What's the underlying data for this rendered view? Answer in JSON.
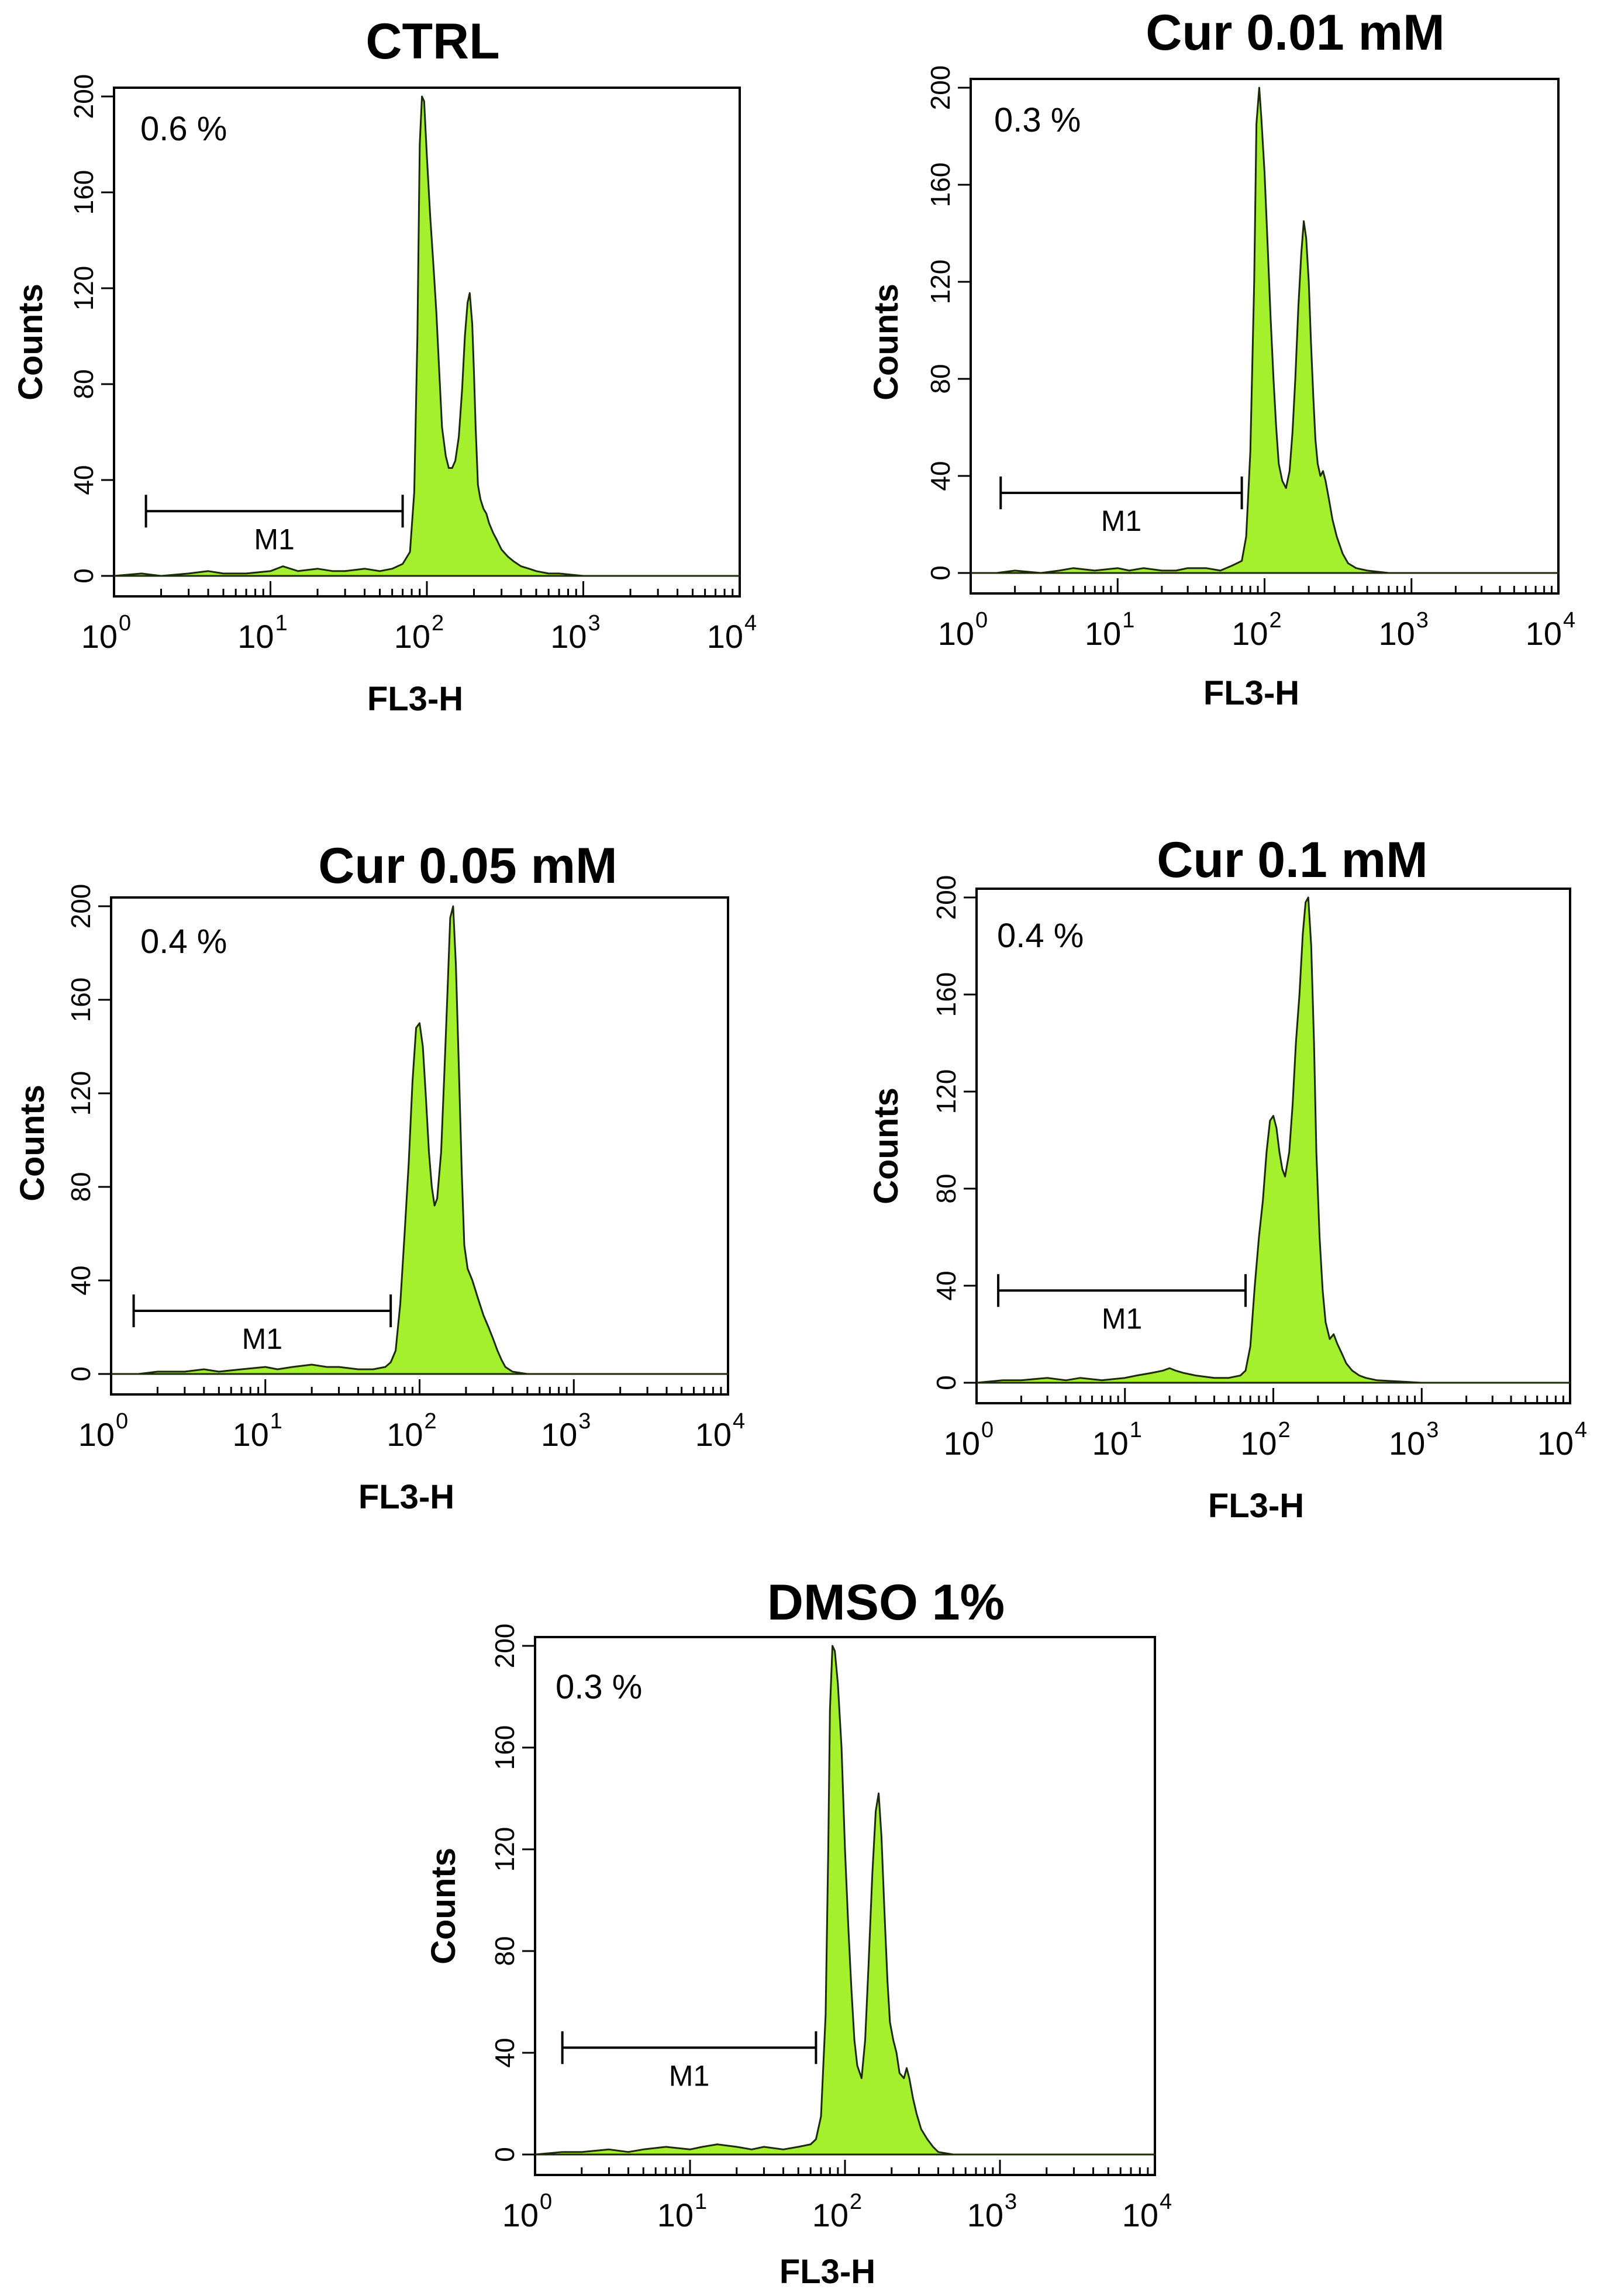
{
  "chart_data": [
    {
      "type": "area",
      "title": "CTRL",
      "xlabel": "FL3-H",
      "ylabel": "Counts",
      "x_scale": "log",
      "xlim": [
        1,
        10000
      ],
      "ylim": [
        0,
        200
      ],
      "yticks": [
        "0",
        "40",
        "80",
        "120",
        "160",
        "200"
      ],
      "xticks": [
        {
          "base": "10",
          "exp": "0"
        },
        {
          "base": "10",
          "exp": "1"
        },
        {
          "base": "10",
          "exp": "2"
        },
        {
          "base": "10",
          "exp": "3"
        },
        {
          "base": "10",
          "exp": "4"
        }
      ],
      "annotation": "0.6 %",
      "marker": {
        "label": "M1",
        "x_start": 1.6,
        "x_end": 70,
        "y": 27
      },
      "series": [
        {
          "name": "FL3-H histogram",
          "x": [
            1,
            1.5,
            2,
            3,
            4,
            5,
            7,
            10,
            12,
            15,
            20,
            25,
            30,
            40,
            50,
            60,
            70,
            78,
            83,
            87,
            90,
            93,
            96,
            100,
            105,
            110,
            115,
            120,
            125,
            132,
            138,
            145,
            152,
            160,
            168,
            175,
            182,
            188,
            195,
            200,
            205,
            212,
            220,
            230,
            240,
            250,
            265,
            280,
            300,
            330,
            360,
            400,
            450,
            500,
            600,
            700,
            1000,
            2000,
            10000
          ],
          "y": [
            0,
            1,
            0,
            1,
            2,
            1,
            1,
            2,
            4,
            2,
            3,
            2,
            2,
            3,
            2,
            3,
            5,
            10,
            35,
            100,
            180,
            200,
            198,
            175,
            150,
            130,
            110,
            85,
            62,
            50,
            45,
            45,
            48,
            58,
            78,
            100,
            114,
            118,
            105,
            85,
            62,
            38,
            32,
            28,
            26,
            22,
            18,
            15,
            11,
            8,
            6,
            4,
            3,
            2,
            1,
            1,
            0,
            0,
            0
          ]
        }
      ]
    },
    {
      "type": "area",
      "title": "Cur 0.01 mM",
      "xlabel": "FL3-H",
      "ylabel": "Counts",
      "x_scale": "log",
      "xlim": [
        1,
        10000
      ],
      "ylim": [
        0,
        200
      ],
      "yticks": [
        "0",
        "40",
        "80",
        "120",
        "160",
        "200"
      ],
      "xticks": [
        {
          "base": "10",
          "exp": "0"
        },
        {
          "base": "10",
          "exp": "1"
        },
        {
          "base": "10",
          "exp": "2"
        },
        {
          "base": "10",
          "exp": "3"
        },
        {
          "base": "10",
          "exp": "4"
        }
      ],
      "annotation": "0.3 %",
      "marker": {
        "label": "M1",
        "x_start": 1.6,
        "x_end": 70,
        "y": 33
      },
      "series": [
        {
          "name": "FL3-H histogram",
          "x": [
            1,
            1.5,
            2,
            3,
            4,
            5,
            7,
            10,
            12,
            15,
            20,
            25,
            30,
            40,
            50,
            60,
            70,
            75,
            80,
            85,
            88,
            92,
            95,
            100,
            105,
            110,
            115,
            120,
            125,
            132,
            140,
            148,
            155,
            162,
            170,
            178,
            185,
            192,
            200,
            207,
            215,
            222,
            230,
            240,
            250,
            260,
            275,
            290,
            310,
            340,
            370,
            420,
            500,
            700,
            1000,
            2000,
            10000
          ],
          "y": [
            0,
            0,
            1,
            0,
            1,
            2,
            1,
            2,
            1,
            2,
            1,
            1,
            2,
            2,
            1,
            3,
            5,
            15,
            50,
            120,
            185,
            200,
            188,
            165,
            135,
            105,
            80,
            60,
            45,
            38,
            35,
            42,
            58,
            80,
            110,
            132,
            145,
            138,
            120,
            95,
            72,
            55,
            45,
            40,
            42,
            38,
            30,
            22,
            15,
            8,
            4,
            2,
            1,
            0,
            0,
            0,
            0
          ]
        }
      ]
    },
    {
      "type": "area",
      "title": "Cur 0.05 mM",
      "xlabel": "FL3-H",
      "ylabel": "Counts",
      "x_scale": "log",
      "xlim": [
        1,
        10000
      ],
      "ylim": [
        0,
        200
      ],
      "yticks": [
        "0",
        "40",
        "80",
        "120",
        "160",
        "200"
      ],
      "xticks": [
        {
          "base": "10",
          "exp": "0"
        },
        {
          "base": "10",
          "exp": "1"
        },
        {
          "base": "10",
          "exp": "2"
        },
        {
          "base": "10",
          "exp": "3"
        },
        {
          "base": "10",
          "exp": "4"
        }
      ],
      "annotation": "0.4 %",
      "marker": {
        "label": "M1",
        "x_start": 1.4,
        "x_end": 65,
        "y": 27
      },
      "series": [
        {
          "name": "FL3-H histogram",
          "x": [
            1,
            1.5,
            2,
            3,
            4,
            5,
            7,
            10,
            12,
            15,
            20,
            25,
            30,
            40,
            50,
            60,
            65,
            70,
            75,
            80,
            85,
            90,
            95,
            100,
            105,
            110,
            115,
            120,
            125,
            130,
            138,
            145,
            152,
            158,
            165,
            172,
            180,
            188,
            195,
            205,
            220,
            240,
            260,
            280,
            300,
            320,
            340,
            360,
            400,
            500,
            1000,
            10000
          ],
          "y": [
            0,
            0,
            1,
            1,
            2,
            1,
            2,
            3,
            2,
            3,
            4,
            3,
            3,
            2,
            2,
            3,
            5,
            10,
            30,
            60,
            90,
            125,
            148,
            150,
            140,
            118,
            95,
            80,
            72,
            75,
            95,
            130,
            165,
            195,
            200,
            175,
            130,
            85,
            55,
            45,
            40,
            32,
            25,
            20,
            15,
            10,
            6,
            3,
            1,
            0,
            0,
            0
          ]
        }
      ]
    },
    {
      "type": "area",
      "title": "Cur 0.1 mM",
      "xlabel": "FL3-H",
      "ylabel": "Counts",
      "x_scale": "log",
      "xlim": [
        1,
        10000
      ],
      "ylim": [
        0,
        200
      ],
      "yticks": [
        "0",
        "40",
        "80",
        "120",
        "160",
        "200"
      ],
      "xticks": [
        {
          "base": "10",
          "exp": "0"
        },
        {
          "base": "10",
          "exp": "1"
        },
        {
          "base": "10",
          "exp": "2"
        },
        {
          "base": "10",
          "exp": "3"
        },
        {
          "base": "10",
          "exp": "4"
        }
      ],
      "annotation": "0.4 %",
      "marker": {
        "label": "M1",
        "x_start": 1.4,
        "x_end": 65,
        "y": 38
      },
      "series": [
        {
          "name": "FL3-H histogram",
          "x": [
            1,
            1.5,
            2,
            3,
            4,
            5,
            7,
            10,
            12,
            15,
            18,
            20,
            22,
            25,
            30,
            40,
            50,
            60,
            65,
            70,
            75,
            80,
            85,
            90,
            95,
            100,
            105,
            110,
            115,
            120,
            128,
            135,
            142,
            150,
            158,
            165,
            172,
            180,
            188,
            195,
            205,
            215,
            225,
            240,
            255,
            270,
            290,
            310,
            340,
            380,
            420,
            500,
            1000,
            10000
          ],
          "y": [
            0,
            1,
            1,
            2,
            1,
            2,
            1,
            2,
            3,
            4,
            5,
            6,
            5,
            4,
            3,
            2,
            2,
            3,
            5,
            15,
            40,
            60,
            75,
            95,
            108,
            110,
            105,
            95,
            88,
            85,
            95,
            115,
            140,
            160,
            185,
            198,
            200,
            180,
            140,
            95,
            60,
            38,
            25,
            18,
            20,
            16,
            12,
            8,
            5,
            3,
            2,
            1,
            0,
            0
          ]
        }
      ]
    },
    {
      "type": "area",
      "title": "DMSO 1%",
      "xlabel": "FL3-H",
      "ylabel": "Counts",
      "x_scale": "log",
      "xlim": [
        1,
        10000
      ],
      "ylim": [
        0,
        200
      ],
      "yticks": [
        "0",
        "40",
        "80",
        "120",
        "160",
        "200"
      ],
      "xticks": [
        {
          "base": "10",
          "exp": "0"
        },
        {
          "base": "10",
          "exp": "1"
        },
        {
          "base": "10",
          "exp": "2"
        },
        {
          "base": "10",
          "exp": "3"
        },
        {
          "base": "10",
          "exp": "4"
        }
      ],
      "annotation": "0.3 %",
      "marker": {
        "label": "M1",
        "x_start": 1.5,
        "x_end": 65,
        "y": 42
      },
      "series": [
        {
          "name": "FL3-H histogram",
          "x": [
            1,
            1.5,
            2,
            3,
            4,
            5,
            7,
            10,
            12,
            15,
            20,
            25,
            30,
            40,
            50,
            60,
            65,
            70,
            75,
            78,
            80,
            83,
            86,
            90,
            95,
            100,
            105,
            110,
            115,
            120,
            128,
            135,
            142,
            150,
            158,
            165,
            172,
            180,
            188,
            195,
            205,
            215,
            225,
            240,
            250,
            260,
            275,
            290,
            310,
            340,
            370,
            400,
            500,
            1000,
            10000
          ],
          "y": [
            0,
            1,
            1,
            2,
            1,
            2,
            3,
            2,
            3,
            4,
            3,
            2,
            3,
            2,
            3,
            4,
            6,
            15,
            55,
            120,
            175,
            200,
            198,
            185,
            160,
            120,
            90,
            65,
            45,
            35,
            30,
            45,
            75,
            110,
            135,
            142,
            125,
            95,
            68,
            52,
            45,
            40,
            32,
            30,
            34,
            30,
            22,
            16,
            10,
            6,
            3,
            1,
            0,
            0,
            0
          ]
        }
      ]
    }
  ]
}
